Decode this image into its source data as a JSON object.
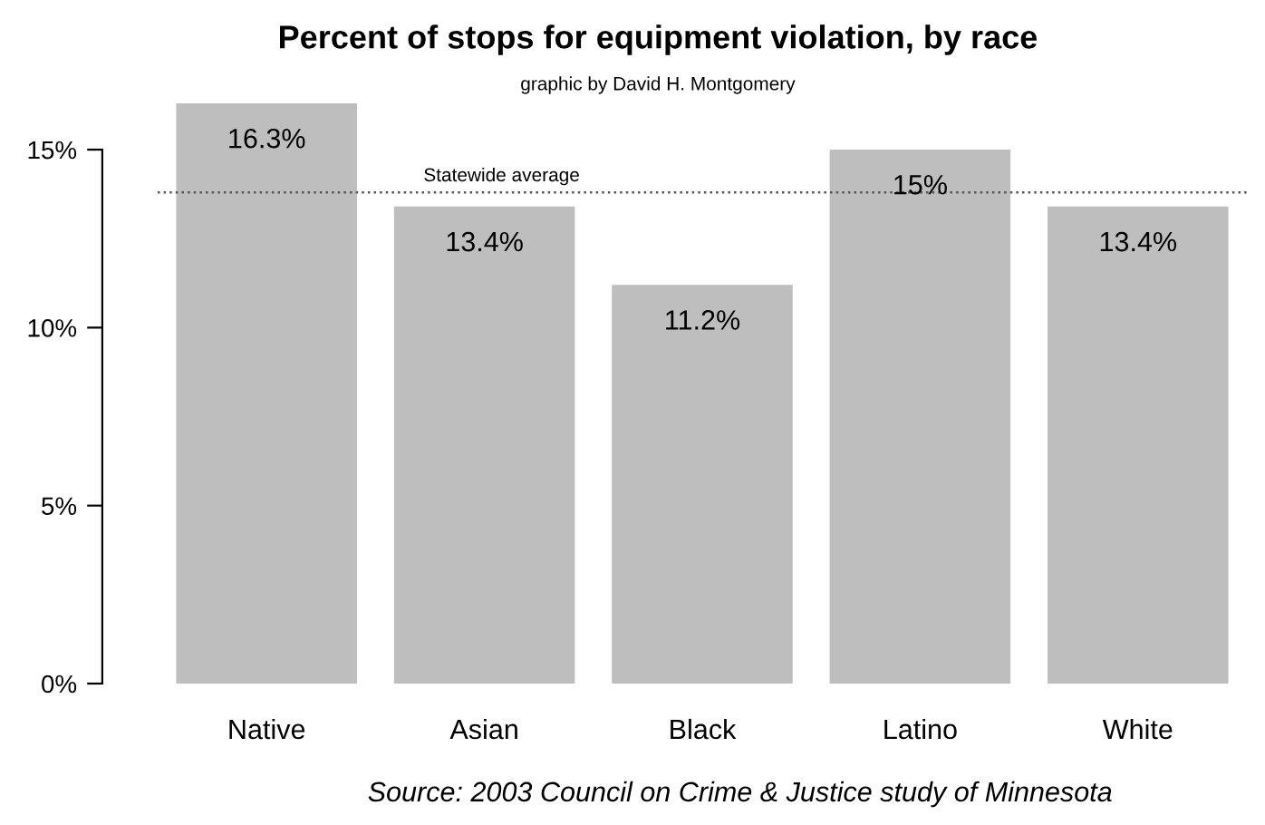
{
  "chart_data": {
    "type": "bar",
    "title": "Percent of stops for equipment violation, by race",
    "subtitle": "graphic by David H. Montgomery",
    "categories": [
      "Native",
      "Asian",
      "Black",
      "Latino",
      "White"
    ],
    "values": [
      16.3,
      13.4,
      11.2,
      15,
      13.4
    ],
    "value_labels": [
      "16.3%",
      "13.4%",
      "11.2%",
      "15%",
      "13.4%"
    ],
    "color": "#bebebe",
    "ylim": [
      0,
      16.3
    ],
    "yticks": [
      {
        "value": 0,
        "label": "0%"
      },
      {
        "value": 5,
        "label": "5%"
      },
      {
        "value": 10,
        "label": "10%"
      },
      {
        "value": 15,
        "label": "15%"
      }
    ],
    "ref_lines": [
      {
        "axis": "y",
        "value": 13.8,
        "label": "Statewide average",
        "color": "#555555",
        "line_style": "dotted"
      }
    ],
    "annotations": [
      "Source: 2003 Council on Crime & Justice study of Minnesota"
    ],
    "grid": false,
    "legend": false
  }
}
